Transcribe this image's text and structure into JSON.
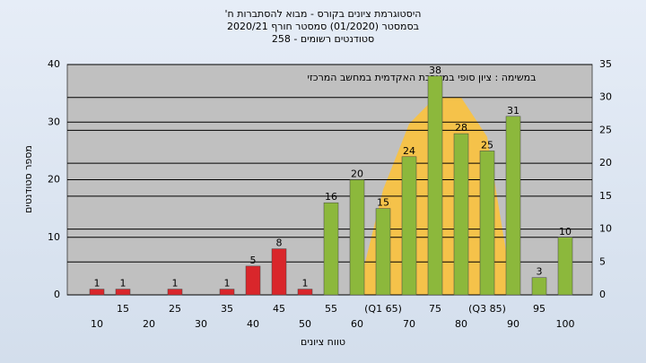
{
  "chart_data": {
    "type": "bar",
    "title": "היסטוגרמת ציונים בקורס - מבוא להסתברות ח'",
    "subtitle": "בסמסטר  (01/2020)  סמסטר חורף  2020/21",
    "subtitle2": "סטודנטים רשומים - 258",
    "annotation": "במשימה : ציון סופי במערכת האקדמית במחשב המרכזי",
    "ylabel": "מספר סטודנטים",
    "xlabel": "טווח ציונים",
    "categories": [
      "10",
      "15",
      "20",
      "25",
      "30",
      "35",
      "40",
      "45",
      "50",
      "55",
      "60",
      "(Q1 65)",
      "70",
      "75",
      "80",
      "(Q3 85)",
      "90",
      "95",
      "100"
    ],
    "values": [
      1,
      1,
      null,
      1,
      null,
      1,
      5,
      8,
      1,
      16,
      20,
      15,
      24,
      38,
      28,
      25,
      31,
      3,
      10
    ],
    "colors": [
      "#d9262b",
      "#d9262b",
      null,
      "#d9262b",
      null,
      "#d9262b",
      "#d9262b",
      "#d9262b",
      "#d9262b",
      "#8cb83c",
      "#8cb83c",
      "#8cb83c",
      "#8cb83c",
      "#8cb83c",
      "#8cb83c",
      "#8cb83c",
      "#8cb83c",
      "#8cb83c",
      "#8cb83c"
    ],
    "area": {
      "axis": "y2",
      "color": "#f5c24a",
      "values": [
        null,
        null,
        null,
        null,
        null,
        null,
        null,
        null,
        null,
        null,
        0,
        16,
        26,
        30,
        30,
        24,
        0,
        null,
        null
      ]
    },
    "ylim": [
      0,
      40
    ],
    "yticks": [
      0,
      10,
      20,
      30,
      40
    ],
    "y2lim": [
      0,
      35
    ],
    "y2ticks": [
      0,
      5,
      10,
      15,
      20,
      25,
      30,
      35
    ],
    "grid": true
  }
}
